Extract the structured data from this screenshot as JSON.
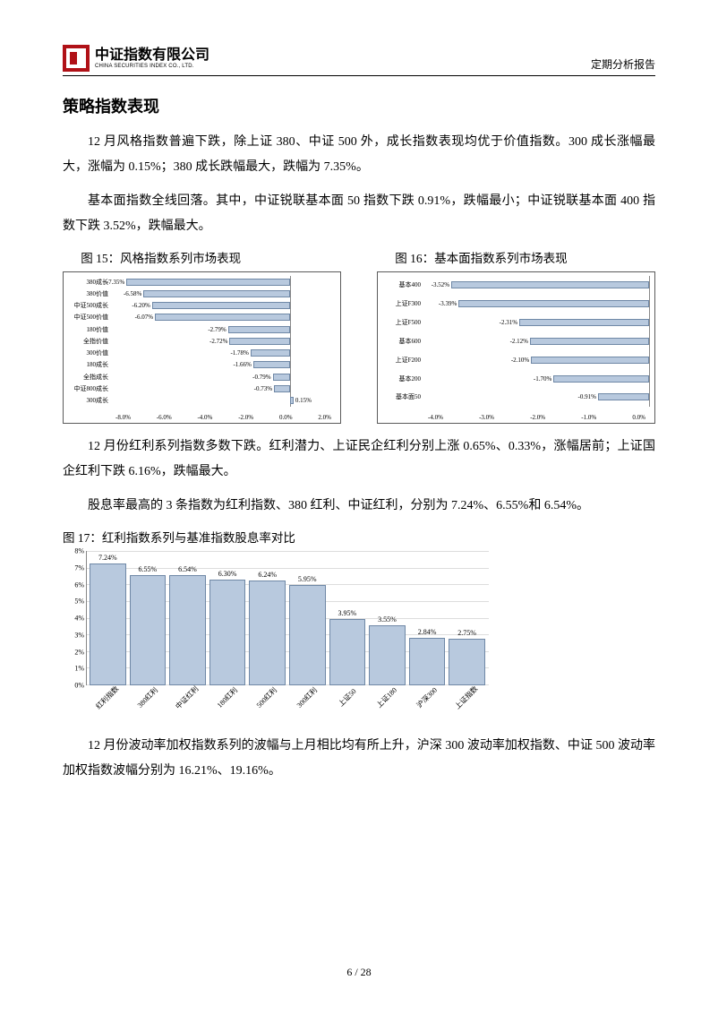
{
  "header": {
    "company_cn": "中证指数有限公司",
    "company_en": "CHINA SECURITIES INDEX CO., LTD.",
    "doc_type": "定期分析报告"
  },
  "section_title": "策略指数表现",
  "paragraphs": {
    "p1": "12 月风格指数普遍下跌，除上证 380、中证 500 外，成长指数表现均优于价值指数。300 成长涨幅最大，涨幅为 0.15%；380 成长跌幅最大，跌幅为 7.35%。",
    "p2": "基本面指数全线回落。其中，中证锐联基本面 50 指数下跌 0.91%，跌幅最小；中证锐联基本面 400 指数下跌 3.52%，跌幅最大。",
    "p3": "12 月份红利系列指数多数下跌。红利潜力、上证民企红利分别上涨 0.65%、0.33%，涨幅居前；上证国企红利下跌 6.16%，跌幅最大。",
    "p4": "股息率最高的 3 条指数为红利指数、380 红利、中证红利，分别为 7.24%、6.55%和 6.54%。",
    "p5": "12 月份波动率加权指数系列的波幅与上月相比均有所上升，沪深 300 波动率加权指数、中证 500 波动率加权指数波幅分别为 16.21%、19.16%。"
  },
  "fig15": {
    "title": "图 15：风格指数系列市场表现",
    "type": "hbar",
    "x_min": -8.0,
    "x_max": 2.0,
    "xticks": [
      "-8.0%",
      "-6.0%",
      "-4.0%",
      "-2.0%",
      "0.0%",
      "2.0%"
    ],
    "label_width": 52,
    "zero_pos_pct": 80,
    "bar_color": "#b8c9de",
    "bar_border": "#6f88a6",
    "rows": [
      {
        "label": "380成长",
        "value": -7.35,
        "text": "-7.35%"
      },
      {
        "label": "380价值",
        "value": -6.58,
        "text": "-6.58%"
      },
      {
        "label": "中证500成长",
        "value": -6.2,
        "text": "-6.20%"
      },
      {
        "label": "中证500价值",
        "value": -6.07,
        "text": "-6.07%"
      },
      {
        "label": "180价值",
        "value": -2.79,
        "text": "-2.79%"
      },
      {
        "label": "全指价值",
        "value": -2.72,
        "text": "-2.72%"
      },
      {
        "label": "300价值",
        "value": -1.78,
        "text": "-1.78%"
      },
      {
        "label": "180成长",
        "value": -1.66,
        "text": "-1.66%"
      },
      {
        "label": "全指成长",
        "value": -0.79,
        "text": "-0.79%"
      },
      {
        "label": "中证800成长",
        "value": -0.73,
        "text": "-0.73%"
      },
      {
        "label": "300成长",
        "value": 0.15,
        "text": "0.15%"
      }
    ]
  },
  "fig16": {
    "title": "图 16：基本面指数系列市场表现",
    "type": "hbar",
    "x_min": -4.0,
    "x_max": 0.0,
    "xticks": [
      "-4.0%",
      "-3.0%",
      "-2.0%",
      "-1.0%",
      "0.0%"
    ],
    "label_width": 50,
    "zero_pos_pct": 100,
    "bar_color": "#b8c9de",
    "bar_border": "#6f88a6",
    "rows": [
      {
        "label": "基本400",
        "value": -3.52,
        "text": "-3.52%"
      },
      {
        "label": "上证F300",
        "value": -3.39,
        "text": "-3.39%"
      },
      {
        "label": "上证F500",
        "value": -2.31,
        "text": "-2.31%"
      },
      {
        "label": "基本600",
        "value": -2.12,
        "text": "-2.12%"
      },
      {
        "label": "上证F200",
        "value": -2.1,
        "text": "-2.10%"
      },
      {
        "label": "基本200",
        "value": -1.7,
        "text": "-1.70%"
      },
      {
        "label": "基本面50",
        "value": -0.91,
        "text": "-0.91%"
      }
    ]
  },
  "fig17": {
    "title": "图 17：红利指数系列与基准指数股息率对比",
    "type": "vbar",
    "y_min": 0,
    "y_max": 8,
    "y_step": 1,
    "yticks": [
      "0%",
      "1%",
      "2%",
      "3%",
      "4%",
      "5%",
      "6%",
      "7%",
      "8%"
    ],
    "bar_color": "#b8c9de",
    "bar_border": "#6f88a6",
    "grid_color": "#dddddd",
    "bars": [
      {
        "label": "红利指数",
        "value": 7.24,
        "text": "7.24%"
      },
      {
        "label": "380红利",
        "value": 6.55,
        "text": "6.55%"
      },
      {
        "label": "中证红利",
        "value": 6.54,
        "text": "6.54%"
      },
      {
        "label": "180红利",
        "value": 6.3,
        "text": "6.30%"
      },
      {
        "label": "500红利",
        "value": 6.24,
        "text": "6.24%"
      },
      {
        "label": "300红利",
        "value": 5.95,
        "text": "5.95%"
      },
      {
        "label": "上证50",
        "value": 3.95,
        "text": "3.95%"
      },
      {
        "label": "上证180",
        "value": 3.55,
        "text": "3.55%"
      },
      {
        "label": "沪深300",
        "value": 2.84,
        "text": "2.84%"
      },
      {
        "label": "上证指数",
        "value": 2.75,
        "text": "2.75%"
      }
    ]
  },
  "footer": {
    "page": "6 / 28"
  }
}
